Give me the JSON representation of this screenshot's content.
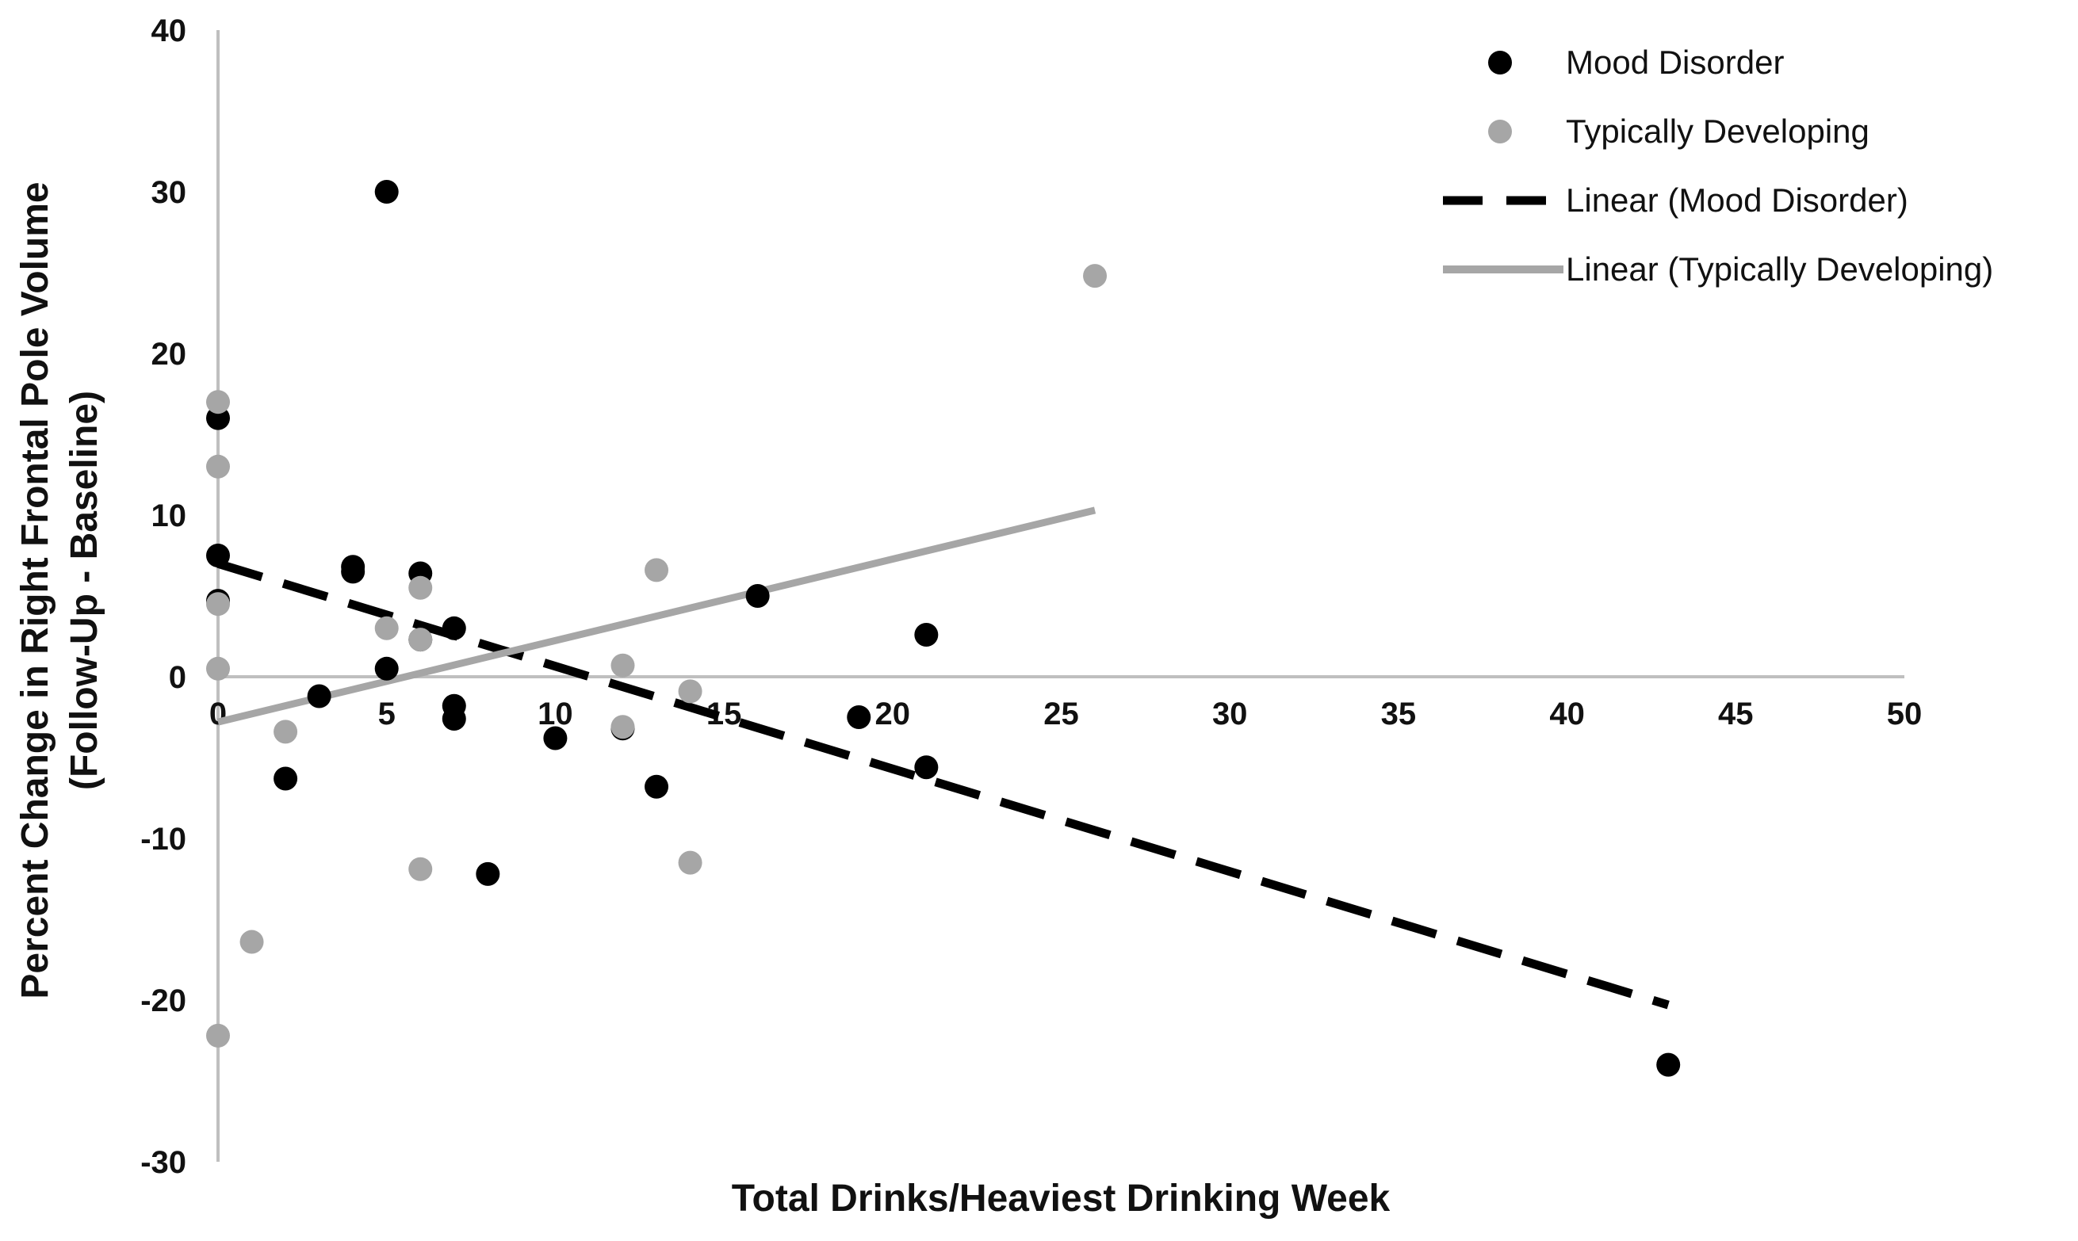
{
  "chart_data": {
    "type": "scatter",
    "title": "",
    "xlabel": "Total Drinks/Heaviest Drinking Week",
    "ylabel_line1": "Percent Change in Right Frontal Pole Volume",
    "ylabel_line2": "(Follow-Up - Baseline)",
    "xlim": [
      0,
      50
    ],
    "ylim": [
      -30,
      40
    ],
    "xticks": [
      0,
      5,
      10,
      15,
      20,
      25,
      30,
      35,
      40,
      45,
      50
    ],
    "yticks": [
      -30,
      -20,
      -10,
      0,
      10,
      20,
      30,
      40
    ],
    "grid": false,
    "legend_position": "top-right",
    "series": [
      {
        "name": "Mood Disorder",
        "color": "#000000",
        "points": [
          {
            "x": 0,
            "y": 16
          },
          {
            "x": 0,
            "y": 7.5
          },
          {
            "x": 0,
            "y": 4.7
          },
          {
            "x": 2,
            "y": -6.3
          },
          {
            "x": 3,
            "y": -1.2
          },
          {
            "x": 4,
            "y": 6.8
          },
          {
            "x": 4,
            "y": 6.5
          },
          {
            "x": 5,
            "y": 30
          },
          {
            "x": 5,
            "y": 0.5
          },
          {
            "x": 6,
            "y": 6.4
          },
          {
            "x": 6,
            "y": 2.3
          },
          {
            "x": 7,
            "y": 3
          },
          {
            "x": 7,
            "y": -1.8
          },
          {
            "x": 7,
            "y": -2.6
          },
          {
            "x": 8,
            "y": -12.2
          },
          {
            "x": 10,
            "y": -3.8
          },
          {
            "x": 12,
            "y": -3.2
          },
          {
            "x": 13,
            "y": -6.8
          },
          {
            "x": 16,
            "y": 5
          },
          {
            "x": 19,
            "y": -2.5
          },
          {
            "x": 21,
            "y": 2.6
          },
          {
            "x": 21,
            "y": -5.6
          },
          {
            "x": 43,
            "y": -24
          }
        ]
      },
      {
        "name": "Typically Developing",
        "color": "#a6a6a6",
        "points": [
          {
            "x": 0,
            "y": 17
          },
          {
            "x": 0,
            "y": 13
          },
          {
            "x": 0,
            "y": 4.5
          },
          {
            "x": 0,
            "y": 0.5
          },
          {
            "x": 0,
            "y": -22.2
          },
          {
            "x": 1,
            "y": -16.4
          },
          {
            "x": 2,
            "y": -3.4
          },
          {
            "x": 5,
            "y": 3
          },
          {
            "x": 6,
            "y": 5.5
          },
          {
            "x": 6,
            "y": 2.3
          },
          {
            "x": 6,
            "y": -11.9
          },
          {
            "x": 12,
            "y": 0.7
          },
          {
            "x": 12,
            "y": -3.1
          },
          {
            "x": 13,
            "y": 6.6
          },
          {
            "x": 14,
            "y": -0.9
          },
          {
            "x": 14,
            "y": -11.5
          },
          {
            "x": 26,
            "y": 24.8
          }
        ]
      }
    ],
    "trendlines": [
      {
        "name": "Linear (Mood Disorder)",
        "color": "#000000",
        "style": "dashed",
        "x0": 0,
        "y0": 7,
        "x1": 43,
        "y1": -20.3
      },
      {
        "name": "Linear (Typically Developing)",
        "color": "#a6a6a6",
        "style": "solid",
        "x0": 0,
        "y0": -2.8,
        "x1": 26,
        "y1": 10.3
      }
    ],
    "legend": [
      {
        "label": "Mood Disorder",
        "kind": "marker",
        "color": "#000000"
      },
      {
        "label": "Typically Developing",
        "kind": "marker",
        "color": "#a6a6a6"
      },
      {
        "label": "Linear (Mood Disorder)",
        "kind": "dashed",
        "color": "#000000"
      },
      {
        "label": "Linear (Typically Developing)",
        "kind": "solid",
        "color": "#a6a6a6"
      }
    ]
  }
}
